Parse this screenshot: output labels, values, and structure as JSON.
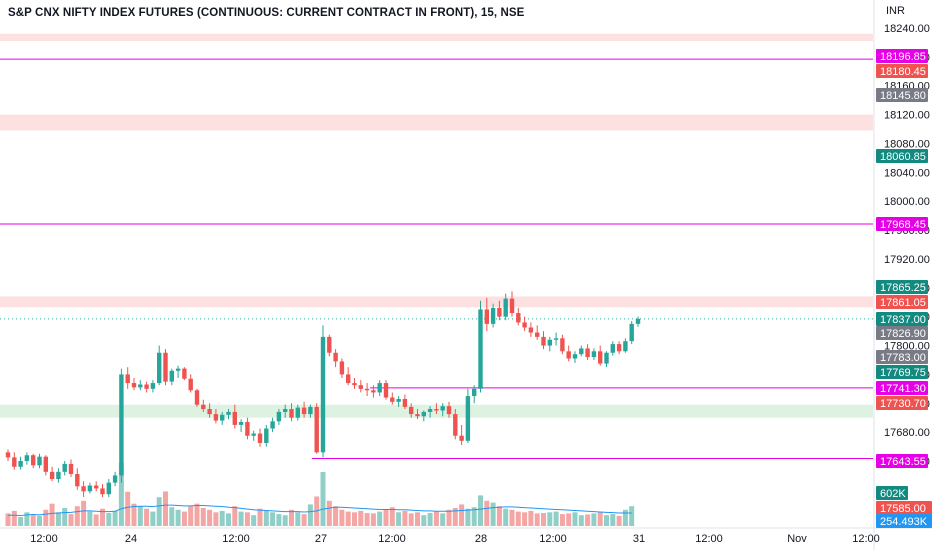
{
  "title": "S&P CNX NIFTY INDEX FUTURES (CONTINUOUS: CURRENT CONTRACT IN FRONT), 15, NSE",
  "currency": "INR",
  "colors": {
    "up": "#26a69a",
    "down": "#ef5350",
    "vol_up": "#8fcfc7",
    "vol_down": "#f4a6a4",
    "magenta": "#e600e6",
    "zone_red": "#fde0e0",
    "zone_green": "#ddf2e0",
    "ma": "#2196f3"
  },
  "chart_data": {
    "type": "candlestick",
    "price_ylim": [
      17580,
      18260
    ],
    "y_ticks": [
      "18240.00",
      "18200.00",
      "18160.00",
      "18120.00",
      "18080.00",
      "18040.00",
      "18000.00",
      "17960.00",
      "17920.00",
      "17880.00",
      "17840.00",
      "17800.00",
      "17760.00",
      "17720.00",
      "17680.00",
      "17640.00"
    ],
    "x_ticks": [
      "12:00",
      "24",
      "12:00",
      "27",
      "12:00",
      "28",
      "12:00",
      "31",
      "12:00",
      "Nov",
      "12:00"
    ],
    "horizontal_lines": [
      {
        "price": 18196.85,
        "label": "18196.85"
      },
      {
        "price": 17968.45,
        "label": "17968.45"
      },
      {
        "price": 17741.3,
        "label": "17741.30"
      },
      {
        "price": 17643.55,
        "label": "17643.55"
      }
    ],
    "zones": [
      {
        "from": 18222,
        "to": 18232,
        "color": "red"
      },
      {
        "from": 18098,
        "to": 18120,
        "color": "red"
      },
      {
        "from": 17853,
        "to": 17868,
        "color": "red"
      },
      {
        "from": 17700,
        "to": 17718,
        "color": "green"
      }
    ],
    "price_labels": [
      {
        "text": "18196.85",
        "bg": "#e600e6",
        "price": 18196.85
      },
      {
        "text": "18180.45",
        "bg": "#ef5350",
        "price": 18180.45
      },
      {
        "text": "18145.80",
        "bg": "#787b86",
        "price": 18145.8
      },
      {
        "text": "18060.85",
        "bg": "#138a80",
        "price": 18060.85
      },
      {
        "text": "17968.45",
        "bg": "#e600e6",
        "price": 17968.45
      },
      {
        "text": "17865.25",
        "bg": "#138a80",
        "price": 17865.25
      },
      {
        "text": "17861.05",
        "bg": "#ef5350",
        "price": 17861.05
      },
      {
        "text": "17837.00",
        "bg": "#138a80",
        "price": 17837.0
      },
      {
        "text": "17826.90",
        "bg": "#787b86",
        "price": 17826.9
      },
      {
        "text": "17783.00",
        "bg": "#787b86",
        "price": 17783.0
      },
      {
        "text": "17769.75",
        "bg": "#138a80",
        "price": 17769.75
      },
      {
        "text": "17741.30",
        "bg": "#e600e6",
        "price": 17741.3
      },
      {
        "text": "17730.70",
        "bg": "#ef5350",
        "price": 17730.7
      },
      {
        "text": "17643.55",
        "bg": "#e600e6",
        "price": 17643.55
      }
    ],
    "volume_labels": [
      {
        "text": "602K",
        "bg": "#138a80"
      },
      {
        "text": "17585.00",
        "bg": "#ef5350"
      },
      {
        "text": "254.493K",
        "bg": "#2196f3"
      }
    ],
    "candles": [
      [
        17652,
        17656,
        17640,
        17645
      ],
      [
        17645,
        17652,
        17628,
        17632
      ],
      [
        17632,
        17646,
        17628,
        17640
      ],
      [
        17640,
        17652,
        17635,
        17648
      ],
      [
        17648,
        17650,
        17630,
        17634
      ],
      [
        17634,
        17650,
        17630,
        17646
      ],
      [
        17646,
        17648,
        17620,
        17625
      ],
      [
        17625,
        17632,
        17612,
        17615
      ],
      [
        17615,
        17630,
        17610,
        17625
      ],
      [
        17625,
        17640,
        17620,
        17636
      ],
      [
        17636,
        17642,
        17618,
        17622
      ],
      [
        17622,
        17630,
        17600,
        17605
      ],
      [
        17605,
        17612,
        17590,
        17598
      ],
      [
        17598,
        17610,
        17595,
        17606
      ],
      [
        17606,
        17612,
        17598,
        17602
      ],
      [
        17602,
        17608,
        17590,
        17594
      ],
      [
        17594,
        17615,
        17590,
        17610
      ],
      [
        17610,
        17625,
        17605,
        17620
      ],
      [
        17620,
        17768,
        17610,
        17760
      ],
      [
        17760,
        17770,
        17740,
        17748
      ],
      [
        17748,
        17755,
        17738,
        17742
      ],
      [
        17742,
        17752,
        17738,
        17746
      ],
      [
        17746,
        17750,
        17735,
        17740
      ],
      [
        17740,
        17752,
        17735,
        17748
      ],
      [
        17748,
        17800,
        17745,
        17790
      ],
      [
        17790,
        17795,
        17745,
        17750
      ],
      [
        17750,
        17768,
        17745,
        17765
      ],
      [
        17765,
        17772,
        17755,
        17768
      ],
      [
        17768,
        17770,
        17752,
        17754
      ],
      [
        17754,
        17760,
        17735,
        17738
      ],
      [
        17738,
        17740,
        17715,
        17718
      ],
      [
        17718,
        17725,
        17708,
        17712
      ],
      [
        17712,
        17720,
        17700,
        17705
      ],
      [
        17705,
        17712,
        17692,
        17696
      ],
      [
        17696,
        17708,
        17690,
        17704
      ],
      [
        17704,
        17712,
        17698,
        17708
      ],
      [
        17708,
        17718,
        17685,
        17690
      ],
      [
        17690,
        17698,
        17680,
        17694
      ],
      [
        17694,
        17700,
        17670,
        17675
      ],
      [
        17675,
        17682,
        17668,
        17678
      ],
      [
        17678,
        17685,
        17660,
        17665
      ],
      [
        17665,
        17690,
        17660,
        17685
      ],
      [
        17685,
        17700,
        17680,
        17695
      ],
      [
        17695,
        17712,
        17690,
        17708
      ],
      [
        17708,
        17718,
        17700,
        17712
      ],
      [
        17712,
        17720,
        17695,
        17700
      ],
      [
        17700,
        17718,
        17696,
        17714
      ],
      [
        17714,
        17722,
        17700,
        17705
      ],
      [
        17705,
        17718,
        17700,
        17715
      ],
      [
        17715,
        17720,
        17650,
        17652
      ],
      [
        17652,
        17828,
        17645,
        17812
      ],
      [
        17812,
        17815,
        17785,
        17790
      ],
      [
        17790,
        17795,
        17770,
        17778
      ],
      [
        17778,
        17782,
        17755,
        17760
      ],
      [
        17760,
        17770,
        17745,
        17748
      ],
      [
        17748,
        17755,
        17740,
        17745
      ],
      [
        17745,
        17752,
        17735,
        17740
      ],
      [
        17740,
        17748,
        17730,
        17738
      ],
      [
        17738,
        17745,
        17728,
        17735
      ],
      [
        17735,
        17752,
        17730,
        17748
      ],
      [
        17748,
        17752,
        17725,
        17728
      ],
      [
        17728,
        17735,
        17718,
        17722
      ],
      [
        17722,
        17730,
        17715,
        17726
      ],
      [
        17726,
        17732,
        17712,
        17715
      ],
      [
        17715,
        17720,
        17700,
        17705
      ],
      [
        17705,
        17712,
        17698,
        17702
      ],
      [
        17702,
        17710,
        17695,
        17708
      ],
      [
        17708,
        17716,
        17700,
        17712
      ],
      [
        17712,
        17720,
        17705,
        17710
      ],
      [
        17710,
        17720,
        17702,
        17716
      ],
      [
        17716,
        17722,
        17700,
        17705
      ],
      [
        17705,
        17712,
        17670,
        17675
      ],
      [
        17675,
        17690,
        17662,
        17668
      ],
      [
        17668,
        17740,
        17665,
        17730
      ],
      [
        17730,
        17745,
        17720,
        17740
      ],
      [
        17740,
        17862,
        17735,
        17850
      ],
      [
        17850,
        17866,
        17820,
        17830
      ],
      [
        17830,
        17858,
        17825,
        17852
      ],
      [
        17852,
        17862,
        17835,
        17840
      ],
      [
        17840,
        17872,
        17835,
        17865
      ],
      [
        17865,
        17875,
        17840,
        17845
      ],
      [
        17845,
        17852,
        17828,
        17832
      ],
      [
        17832,
        17840,
        17820,
        17825
      ],
      [
        17825,
        17832,
        17812,
        17818
      ],
      [
        17818,
        17828,
        17808,
        17812
      ],
      [
        17812,
        17820,
        17795,
        17800
      ],
      [
        17800,
        17812,
        17792,
        17808
      ],
      [
        17808,
        17818,
        17800,
        17810
      ],
      [
        17810,
        17815,
        17788,
        17792
      ],
      [
        17792,
        17800,
        17778,
        17782
      ],
      [
        17782,
        17792,
        17776,
        17788
      ],
      [
        17788,
        17800,
        17785,
        17796
      ],
      [
        17796,
        17802,
        17780,
        17784
      ],
      [
        17784,
        17796,
        17780,
        17792
      ],
      [
        17792,
        17800,
        17772,
        17775
      ],
      [
        17775,
        17792,
        17770,
        17790
      ],
      [
        17790,
        17806,
        17786,
        17802
      ],
      [
        17802,
        17806,
        17788,
        17792
      ],
      [
        17792,
        17810,
        17790,
        17806
      ],
      [
        17806,
        17834,
        17802,
        17830
      ],
      [
        17830,
        17840,
        17826,
        17837
      ]
    ],
    "volumes": [
      35,
      42,
      25,
      38,
      30,
      28,
      45,
      62,
      38,
      50,
      33,
      55,
      70,
      40,
      32,
      48,
      36,
      42,
      175,
      95,
      62,
      55,
      48,
      40,
      80,
      96,
      52,
      45,
      40,
      55,
      62,
      50,
      45,
      38,
      42,
      35,
      55,
      40,
      38,
      30,
      48,
      42,
      38,
      33,
      30,
      45,
      38,
      33,
      60,
      82,
      150,
      70,
      55,
      45,
      40,
      38,
      42,
      36,
      35,
      40,
      45,
      52,
      38,
      42,
      35,
      38,
      30,
      36,
      40,
      35,
      45,
      50,
      60,
      48,
      52,
      85,
      70,
      65,
      55,
      48,
      45,
      40,
      38,
      42,
      35,
      36,
      38,
      40,
      33,
      35,
      38,
      30,
      32,
      35,
      38,
      30,
      33,
      28,
      45,
      55
    ],
    "ma": [
      30,
      30,
      29,
      31,
      32,
      31,
      33,
      35,
      36,
      37,
      38,
      40,
      42,
      42,
      41,
      40,
      40,
      41,
      48,
      52,
      54,
      55,
      55,
      54,
      56,
      58,
      58,
      57,
      56,
      56,
      57,
      57,
      56,
      55,
      54,
      52,
      51,
      49,
      47,
      45,
      44,
      43,
      42,
      41,
      40,
      40,
      40,
      39,
      40,
      42,
      47,
      50,
      52,
      52,
      51,
      50,
      49,
      48,
      47,
      46,
      46,
      46,
      45,
      45,
      44,
      43,
      42,
      42,
      41,
      41,
      41,
      42,
      43,
      44,
      45,
      47,
      49,
      51,
      52,
      53,
      53,
      52,
      51,
      50,
      49,
      48,
      47,
      46,
      45,
      44,
      43,
      42,
      41,
      40,
      39,
      38,
      37,
      36,
      36,
      36
    ]
  }
}
